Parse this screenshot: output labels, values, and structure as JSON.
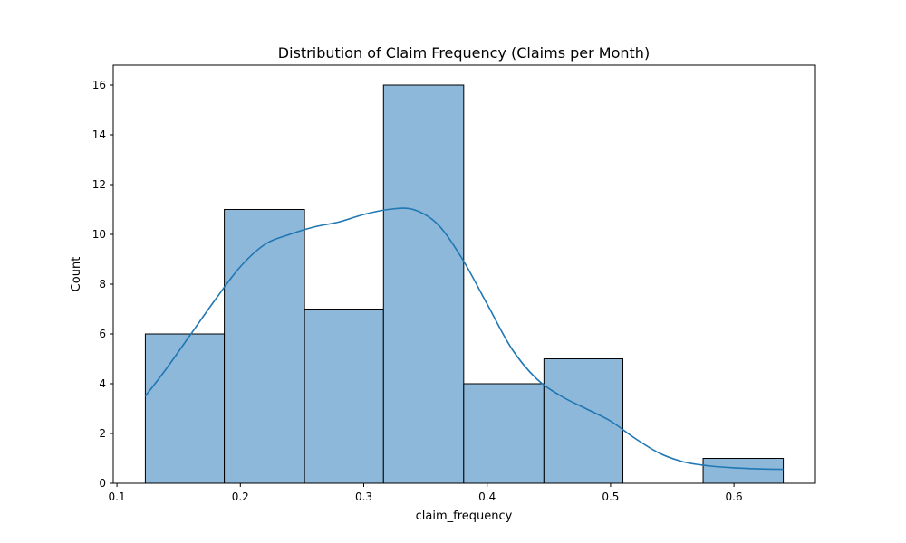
{
  "chart_data": {
    "type": "bar",
    "title": "Distribution of Claim Frequency (Claims per Month)",
    "xlabel": "claim_frequency",
    "ylabel": "Count",
    "xlim": [
      0.097,
      0.666
    ],
    "ylim": [
      0,
      16.8
    ],
    "grid": false,
    "bins": [
      {
        "x0": 0.123,
        "x1": 0.187,
        "count": 6
      },
      {
        "x0": 0.187,
        "x1": 0.252,
        "count": 11
      },
      {
        "x0": 0.252,
        "x1": 0.316,
        "count": 7
      },
      {
        "x0": 0.316,
        "x1": 0.381,
        "count": 16
      },
      {
        "x0": 0.381,
        "x1": 0.446,
        "count": 4
      },
      {
        "x0": 0.446,
        "x1": 0.51,
        "count": 5
      },
      {
        "x0": 0.51,
        "x1": 0.575,
        "count": 0
      },
      {
        "x0": 0.575,
        "x1": 0.64,
        "count": 1
      }
    ],
    "kde": {
      "x": [
        0.123,
        0.14,
        0.16,
        0.18,
        0.2,
        0.22,
        0.24,
        0.26,
        0.28,
        0.3,
        0.32,
        0.34,
        0.36,
        0.38,
        0.4,
        0.42,
        0.44,
        0.46,
        0.48,
        0.5,
        0.52,
        0.54,
        0.56,
        0.58,
        0.6,
        0.62,
        0.64
      ],
      "y": [
        3.5,
        4.6,
        6.0,
        7.4,
        8.7,
        9.6,
        10.0,
        10.3,
        10.5,
        10.8,
        11.0,
        11.0,
        10.4,
        9.0,
        7.2,
        5.4,
        4.2,
        3.5,
        3.0,
        2.5,
        1.8,
        1.2,
        0.85,
        0.7,
        0.62,
        0.58,
        0.56
      ]
    },
    "xticks": [
      0.1,
      0.2,
      0.3,
      0.4,
      0.5,
      0.6
    ],
    "xtick_labels": [
      "0.1",
      "0.2",
      "0.3",
      "0.4",
      "0.5",
      "0.6"
    ],
    "yticks": [
      0,
      2,
      4,
      6,
      8,
      10,
      12,
      14,
      16
    ],
    "ytick_labels": [
      "0",
      "2",
      "4",
      "6",
      "8",
      "10",
      "12",
      "14",
      "16"
    ],
    "colors": {
      "bar_fill": "#8db8d9",
      "bar_edge": "#000000",
      "kde_line": "#1f77b4"
    }
  }
}
